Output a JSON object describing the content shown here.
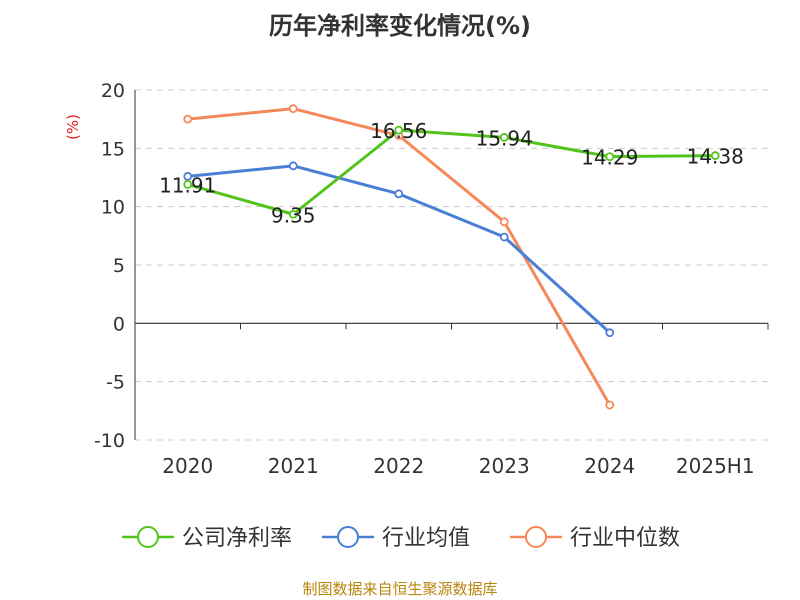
{
  "title": "历年净利率变化情况(%)",
  "source": "制图数据来自恒生聚源数据库",
  "chart_data": {
    "type": "line",
    "title": "历年净利率变化情况(%)",
    "ylabel": "(%)",
    "xlabel": "",
    "categories": [
      "2020",
      "2021",
      "2022",
      "2023",
      "2024",
      "2025H1"
    ],
    "ylim": [
      -10,
      20
    ],
    "yticks": [
      20,
      15,
      10,
      5,
      0,
      -5,
      -10
    ],
    "grid": true,
    "legend_position": "bottom",
    "series": [
      {
        "name": "公司净利率",
        "color": "#52c41a",
        "values": [
          11.91,
          9.35,
          16.56,
          15.94,
          14.29,
          14.38
        ],
        "labels": [
          "11.91",
          "9.35",
          "16.56",
          "15.94",
          "14.29",
          "14.38"
        ]
      },
      {
        "name": "行业均值",
        "color": "#4a7fd6",
        "values": [
          12.6,
          13.5,
          11.1,
          7.4,
          -0.8,
          null
        ]
      },
      {
        "name": "行业中位数",
        "color": "#f5895a",
        "values": [
          17.5,
          18.4,
          16.1,
          8.7,
          -7.0,
          null
        ]
      }
    ],
    "ylabel_color": "#e02020"
  }
}
